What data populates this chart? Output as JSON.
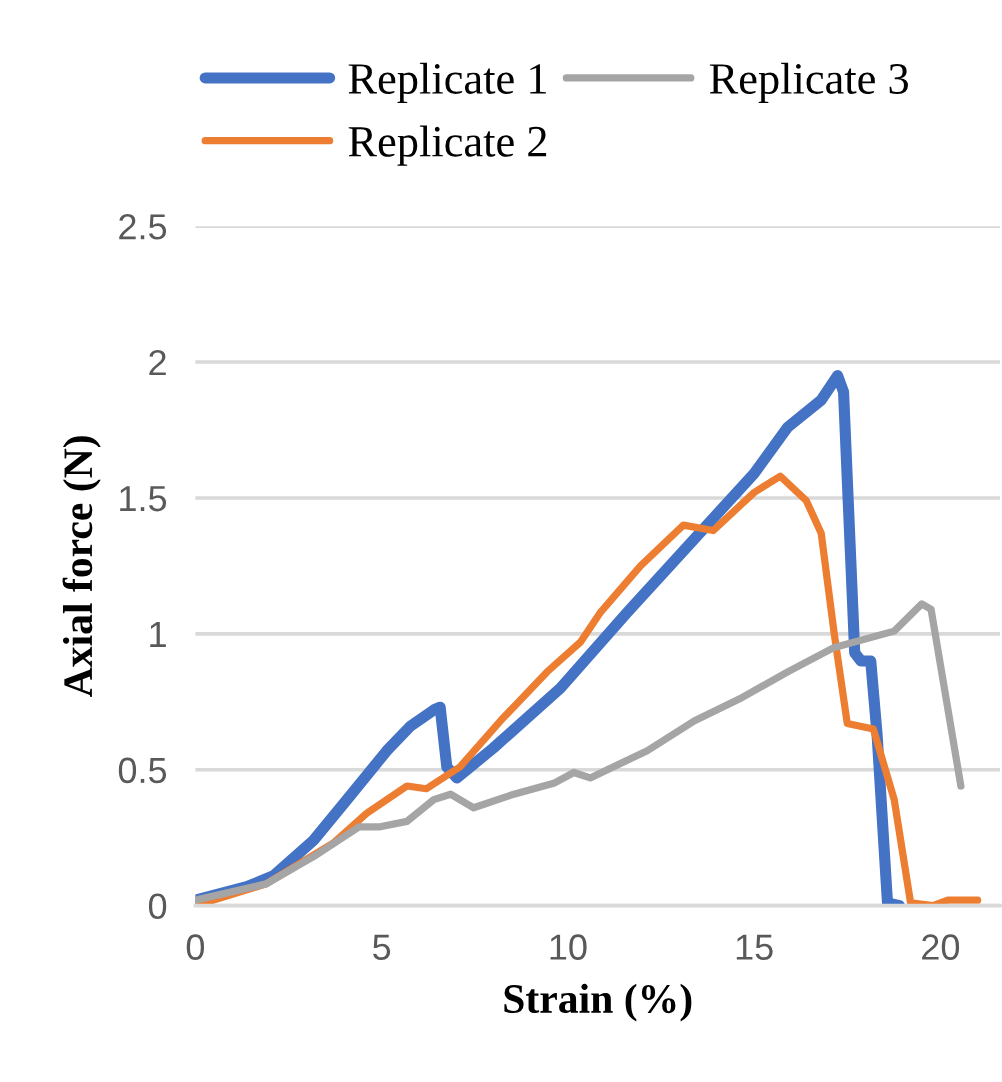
{
  "chart_data": {
    "type": "line",
    "xlabel": "Strain (%)",
    "ylabel": "Axial force (N)",
    "xlim": [
      0,
      21.6
    ],
    "xticks": [
      0,
      5,
      10,
      15,
      20
    ],
    "ylim": [
      0,
      2.5
    ],
    "yticks": [
      0,
      0.5,
      1,
      1.5,
      2,
      2.5
    ],
    "grid": "y",
    "legend": "top",
    "marker": "none",
    "line_style": "solid",
    "series": [
      {
        "name": "Replicate 1",
        "color": "#4472c4",
        "x": [
          0,
          1.38,
          2.1,
          3.17,
          4.07,
          5.14,
          5.77,
          6.4,
          6.57,
          6.75,
          7.02,
          8.0,
          9.8,
          11.6,
          13.4,
          15.0,
          15.9,
          16.8,
          17.24,
          17.4,
          17.7,
          17.87,
          18.13,
          18.3,
          18.58,
          18.9
        ],
        "values": [
          0.02,
          0.07,
          0.11,
          0.24,
          0.39,
          0.57,
          0.66,
          0.72,
          0.73,
          0.51,
          0.47,
          0.58,
          0.8,
          1.08,
          1.35,
          1.59,
          1.76,
          1.86,
          1.95,
          1.89,
          0.93,
          0.9,
          0.9,
          0.63,
          0.01,
          0.0
        ]
      },
      {
        "name": "Replicate 2",
        "color": "#ed7d31",
        "x": [
          0,
          1.9,
          3.7,
          4.6,
          5.68,
          6.2,
          7.1,
          8.19,
          9.44,
          10.34,
          10.88,
          11.95,
          13.1,
          13.9,
          15.0,
          15.7,
          16.4,
          16.8,
          17.15,
          17.5,
          18.2,
          18.76,
          19.2,
          19.8,
          20.2,
          21.0
        ],
        "values": [
          0,
          0.08,
          0.23,
          0.34,
          0.44,
          0.43,
          0.51,
          0.68,
          0.86,
          0.97,
          1.08,
          1.25,
          1.4,
          1.38,
          1.52,
          1.58,
          1.49,
          1.37,
          1.0,
          0.67,
          0.65,
          0.39,
          0.01,
          0,
          0.02,
          0.02
        ]
      },
      {
        "name": "Replicate 3",
        "color": "#a5a5a5",
        "x": [
          0,
          1.9,
          3.17,
          4.4,
          4.96,
          5.68,
          6.4,
          6.85,
          7.47,
          8.55,
          9.62,
          10.16,
          10.6,
          12.13,
          13.4,
          14.6,
          15.9,
          17.15,
          18.76,
          19.5,
          19.75,
          20.55
        ],
        "values": [
          0.02,
          0.08,
          0.18,
          0.29,
          0.29,
          0.31,
          0.39,
          0.41,
          0.36,
          0.41,
          0.45,
          0.49,
          0.47,
          0.57,
          0.68,
          0.76,
          0.86,
          0.95,
          1.01,
          1.11,
          1.09,
          0.44
        ]
      }
    ]
  }
}
